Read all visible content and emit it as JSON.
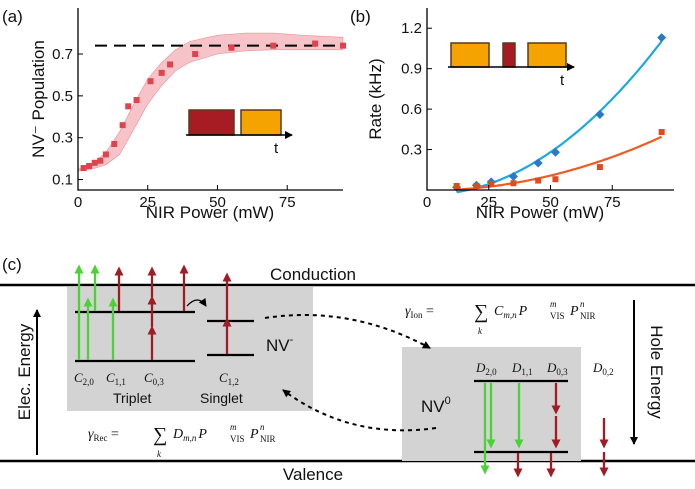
{
  "panel_labels": {
    "a": "(a)",
    "b": "(b)",
    "c": "(c)"
  },
  "colors": {
    "red_marker": "#e0424e",
    "red_band": "#f6c3c8",
    "pulse_red": "#a61c22",
    "pulse_orange": "#f5a300",
    "pulse_border": "#5a3a1a",
    "blue_curve": "#1ea7e6",
    "blue_marker": "#2b79c2",
    "orange_curve": "#f05a23",
    "orange_marker": "#e04a1c",
    "green_arrow": "#4cd137",
    "dark_red_arrow": "#a01c25",
    "gray_box": "#d3d3d3"
  },
  "chart_data": [
    {
      "type": "scatter",
      "panel": "(a)",
      "xlabel": "NIR Power (mW)",
      "ylabel": "NV⁻ Population",
      "xlim": [
        0,
        95
      ],
      "ylim": [
        0.05,
        0.92
      ],
      "xticks": [
        0,
        25,
        50,
        75
      ],
      "yticks": [
        0.1,
        0.3,
        0.5,
        0.7
      ],
      "ytick_labels": [
        "0.1",
        "0.3",
        "0.5",
        "0.7"
      ],
      "dashed_line_y": 0.74,
      "series": [
        {
          "x": [
            2,
            4,
            6,
            8,
            10,
            13,
            16,
            18,
            21,
            26,
            30,
            33,
            42,
            55,
            70,
            85,
            95
          ],
          "y": [
            0.155,
            0.165,
            0.18,
            0.19,
            0.22,
            0.27,
            0.36,
            0.45,
            0.48,
            0.57,
            0.61,
            0.65,
            0.7,
            0.73,
            0.74,
            0.75,
            0.74
          ]
        }
      ],
      "band": {
        "x": [
          0,
          5,
          10,
          15,
          20,
          25,
          30,
          35,
          40,
          50,
          60,
          70,
          80,
          95
        ],
        "y_low": [
          0.14,
          0.15,
          0.17,
          0.22,
          0.34,
          0.46,
          0.55,
          0.62,
          0.66,
          0.7,
          0.715,
          0.72,
          0.72,
          0.72
        ],
        "y_high": [
          0.15,
          0.17,
          0.23,
          0.33,
          0.46,
          0.58,
          0.66,
          0.72,
          0.76,
          0.79,
          0.8,
          0.8,
          0.79,
          0.78
        ]
      },
      "inset_axis_label": "t"
    },
    {
      "type": "line",
      "panel": "(b)",
      "xlabel": "NIR Power (mW)",
      "ylabel": "Rate (kHz)",
      "xlim": [
        0,
        100
      ],
      "ylim": [
        0,
        1.35
      ],
      "xticks": [
        0,
        25,
        50,
        75
      ],
      "yticks": [
        0.3,
        0.6,
        0.9,
        1.2
      ],
      "ytick_labels": [
        "0.3",
        "0.6",
        "0.9",
        "1.2"
      ],
      "series": [
        {
          "x": [
            12,
            20,
            26,
            35,
            45,
            52,
            70,
            95
          ],
          "y": [
            0.02,
            0.035,
            0.06,
            0.1,
            0.2,
            0.28,
            0.56,
            1.13
          ]
        },
        {
          "x": [
            12,
            20,
            26,
            35,
            45,
            52,
            70,
            95
          ],
          "y": [
            0.03,
            0.03,
            0.045,
            0.05,
            0.07,
            0.08,
            0.17,
            0.43
          ]
        }
      ],
      "inset_axis_label": "t"
    }
  ],
  "diagram": {
    "conduction_label": "Conduction",
    "valence_label": "Valence",
    "elec_energy_label": "Elec. Energy",
    "hole_energy_label": "Hole Energy",
    "triplet_label": "Triplet",
    "singlet_label": "Singlet",
    "nv_minus_base": "NV",
    "nv_minus_sup": "-",
    "nv_zero_base": "NV",
    "nv_zero_sup": "0",
    "c_labels": [
      {
        "sym": "C",
        "sub": "2,0"
      },
      {
        "sym": "C",
        "sub": "1,1"
      },
      {
        "sym": "C",
        "sub": "0,3"
      },
      {
        "sym": "C",
        "sub": "1,2"
      }
    ],
    "d_labels": [
      {
        "sym": "D",
        "sub": "2,0"
      },
      {
        "sym": "D",
        "sub": "1,1"
      },
      {
        "sym": "D",
        "sub": "0,3"
      },
      {
        "sym": "D",
        "sub": "0,2"
      }
    ],
    "gamma_ion": {
      "gamma": "γ",
      "gamma_sub": "Ion",
      "eq": " = ",
      "sum": "∑",
      "sum_sub": "k",
      "coef": "C",
      "coef_sub": "m,n",
      "p": "P",
      "vis_sup": "m",
      "vis_sub": "VIS",
      "nir_sup": "n",
      "nir_sub": "NIR"
    },
    "gamma_rec": {
      "gamma": "γ",
      "gamma_sub": "Rec",
      "eq": " = ",
      "sum": "∑",
      "sum_sub": "k",
      "coef": "D",
      "coef_sub": "m,n",
      "p": "P",
      "vis_sup": "m",
      "vis_sub": "VIS",
      "nir_sup": "n",
      "nir_sub": "NIR"
    }
  }
}
